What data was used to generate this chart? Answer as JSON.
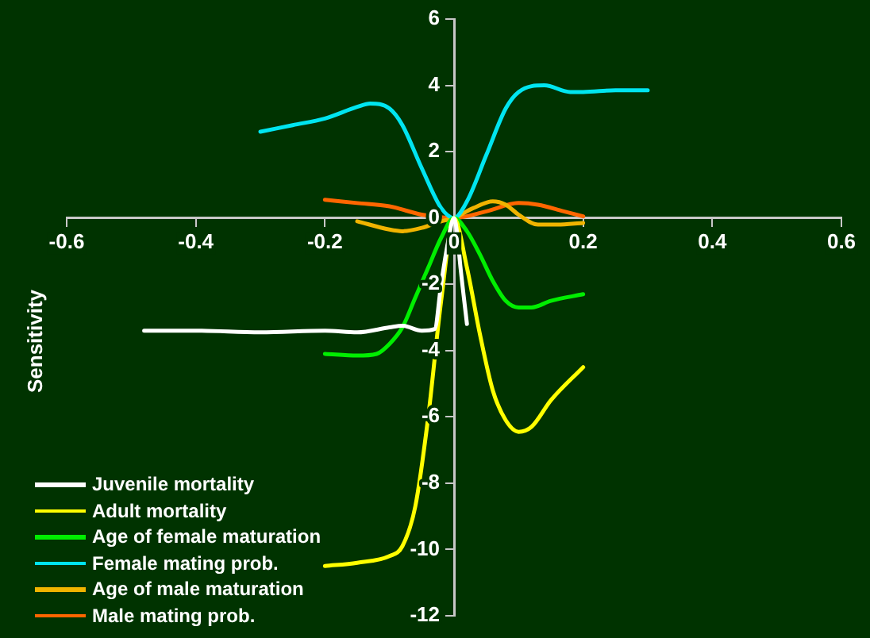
{
  "chart_data": {
    "type": "line",
    "ylabel": "Sensitivity",
    "xlim": [
      -0.6,
      0.6
    ],
    "xticks": [
      -0.6,
      -0.4,
      -0.2,
      0,
      0.2,
      0.4,
      0.6
    ],
    "ylim": [
      -12,
      6
    ],
    "yticks": [
      -12,
      -10,
      -8,
      -6,
      -4,
      -2,
      0,
      2,
      4,
      6
    ],
    "grid": false,
    "legend": "bottom left",
    "marker": "none",
    "line_style": "solid",
    "series": [
      {
        "name": "Juvenile mortality",
        "color": "#ffffff",
        "x": [
          -0.48,
          -0.4,
          -0.3,
          -0.2,
          -0.15,
          -0.1,
          -0.08,
          -0.05,
          -0.03,
          -0.02,
          -0.01,
          0,
          0.005,
          0.01,
          0.02
        ],
        "values": [
          -3.4,
          -3.4,
          -3.45,
          -3.4,
          -3.45,
          -3.3,
          -3.25,
          -3.4,
          -3.35,
          -2,
          -0.8,
          0,
          -0.5,
          -1.5,
          -3.2
        ]
      },
      {
        "name": "Adult mortality",
        "color": "#ffff00",
        "x": [
          -0.2,
          -0.15,
          -0.1,
          -0.08,
          -0.06,
          -0.04,
          -0.02,
          0,
          0.02,
          0.04,
          0.06,
          0.08,
          0.1,
          0.12,
          0.15,
          0.2
        ],
        "values": [
          -10.5,
          -10.4,
          -10.2,
          -9.9,
          -8.7,
          -6,
          -2.5,
          0,
          -1.5,
          -3.5,
          -5.2,
          -6.1,
          -6.45,
          -6.3,
          -5.5,
          -4.5
        ]
      },
      {
        "name": "Age of female maturation",
        "color": "#00ee00",
        "x": [
          -0.2,
          -0.15,
          -0.12,
          -0.1,
          -0.08,
          -0.06,
          -0.04,
          -0.02,
          0,
          0.02,
          0.04,
          0.06,
          0.08,
          0.1,
          0.12,
          0.15,
          0.2
        ],
        "values": [
          -4.1,
          -4.15,
          -4.1,
          -3.8,
          -3.3,
          -2.4,
          -1.5,
          -0.6,
          0,
          -0.4,
          -1.1,
          -1.9,
          -2.5,
          -2.7,
          -2.7,
          -2.5,
          -2.3
        ]
      },
      {
        "name": "Female mating prob.",
        "color": "#00e5f0",
        "x": [
          -0.3,
          -0.25,
          -0.2,
          -0.15,
          -0.13,
          -0.1,
          -0.08,
          -0.05,
          -0.02,
          0,
          0.02,
          0.05,
          0.08,
          0.1,
          0.14,
          0.18,
          0.2,
          0.25,
          0.3
        ],
        "values": [
          2.6,
          2.8,
          3,
          3.35,
          3.45,
          3.3,
          2.8,
          1.5,
          0.3,
          0,
          0.5,
          1.9,
          3.3,
          3.8,
          4,
          3.8,
          3.8,
          3.85,
          3.85
        ]
      },
      {
        "name": "Age of male maturation",
        "color": "#f0b400",
        "x": [
          -0.15,
          -0.1,
          -0.08,
          -0.05,
          -0.02,
          0,
          0.03,
          0.06,
          0.08,
          0.1,
          0.13,
          0.16,
          0.2
        ],
        "values": [
          -0.1,
          -0.35,
          -0.4,
          -0.3,
          -0.1,
          0,
          0.3,
          0.5,
          0.4,
          0.1,
          -0.2,
          -0.2,
          -0.15
        ]
      },
      {
        "name": "Male mating prob.",
        "color": "#ff6600",
        "x": [
          -0.2,
          -0.15,
          -0.1,
          -0.05,
          0,
          0.05,
          0.1,
          0.13,
          0.17,
          0.2
        ],
        "values": [
          0.55,
          0.45,
          0.35,
          0.1,
          0,
          0.2,
          0.45,
          0.4,
          0.2,
          0.05
        ]
      }
    ]
  }
}
